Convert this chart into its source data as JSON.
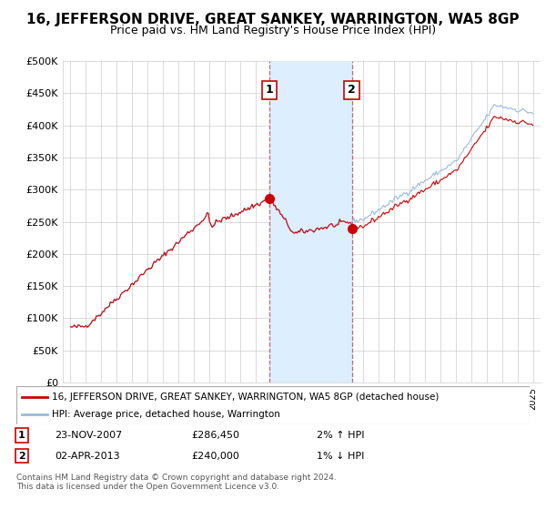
{
  "title": "16, JEFFERSON DRIVE, GREAT SANKEY, WARRINGTON, WA5 8GP",
  "subtitle": "Price paid vs. HM Land Registry's House Price Index (HPI)",
  "ylabel_ticks": [
    "£0",
    "£50K",
    "£100K",
    "£150K",
    "£200K",
    "£250K",
    "£300K",
    "£350K",
    "£400K",
    "£450K",
    "£500K"
  ],
  "ylim": [
    0,
    500000
  ],
  "xlim_start": 1994.5,
  "xlim_end": 2025.5,
  "sale1_x": 2007.9,
  "sale1_y": 286450,
  "sale1_label": "1",
  "sale2_x": 2013.25,
  "sale2_y": 240000,
  "sale2_label": "2",
  "shade_x1": 2007.9,
  "shade_x2": 2013.25,
  "line_color_property": "#cc0000",
  "line_color_hpi": "#99bbdd",
  "shade_color": "#ddeeff",
  "legend_property": "16, JEFFERSON DRIVE, GREAT SANKEY, WARRINGTON, WA5 8GP (detached house)",
  "legend_hpi": "HPI: Average price, detached house, Warrington",
  "annotation1_date": "23-NOV-2007",
  "annotation1_price": "£286,450",
  "annotation1_hpi": "2% ↑ HPI",
  "annotation2_date": "02-APR-2013",
  "annotation2_price": "£240,000",
  "annotation2_hpi": "1% ↓ HPI",
  "footer": "Contains HM Land Registry data © Crown copyright and database right 2024.\nThis data is licensed under the Open Government Licence v3.0.",
  "title_fontsize": 11,
  "subtitle_fontsize": 9,
  "axis_fontsize": 8,
  "background_color": "#ffffff",
  "grid_color": "#cccccc"
}
